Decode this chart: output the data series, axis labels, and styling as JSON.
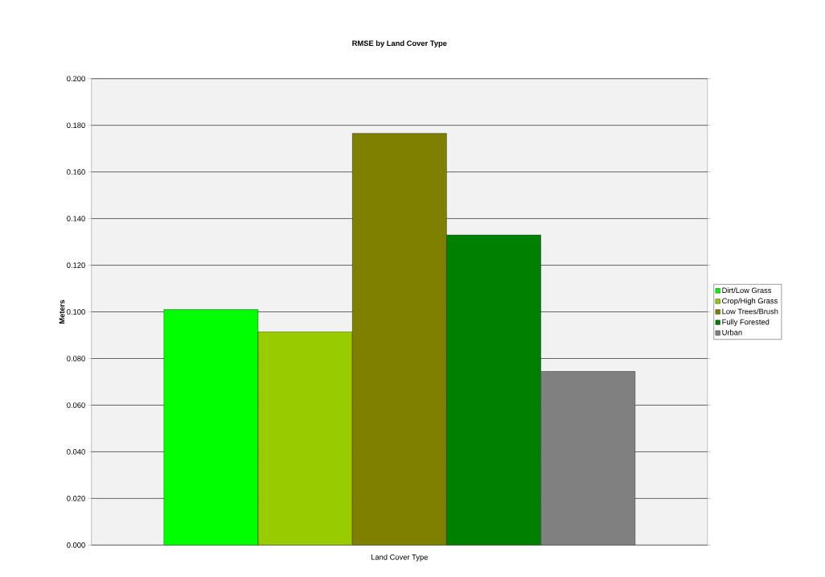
{
  "chart_data": {
    "type": "bar",
    "title": "RMSE by Land Cover Type",
    "ylabel": "Meters",
    "categories": [
      "Land Cover Type"
    ],
    "series": [
      {
        "name": "Dirt/Low Grass",
        "color": "#00ff00",
        "values": [
          0.101
        ]
      },
      {
        "name": "Crop/High Grass",
        "color": "#99cc00",
        "values": [
          0.0915
        ]
      },
      {
        "name": "Low Trees/Brush",
        "color": "#808000",
        "values": [
          0.1765
        ]
      },
      {
        "name": "Fully Forested",
        "color": "#008000",
        "values": [
          0.133
        ]
      },
      {
        "name": "Urban",
        "color": "#808080",
        "values": [
          0.0745
        ]
      }
    ],
    "ylim": [
      0,
      0.2
    ],
    "yticks": [
      {
        "value": 0,
        "label": "0.000"
      },
      {
        "value": 0.02,
        "label": "0.020"
      },
      {
        "value": 0.04,
        "label": "0.040"
      },
      {
        "value": 0.06,
        "label": "0.060"
      },
      {
        "value": 0.08,
        "label": "0.080"
      },
      {
        "value": 0.1,
        "label": "0.100"
      },
      {
        "value": 0.12,
        "label": "0.120"
      },
      {
        "value": 0.14,
        "label": "0.140"
      },
      {
        "value": 0.16,
        "label": "0.160"
      },
      {
        "value": 0.18,
        "label": "0.180"
      },
      {
        "value": 0.2,
        "label": "0.200"
      }
    ],
    "grid": "y",
    "legend": "right"
  }
}
